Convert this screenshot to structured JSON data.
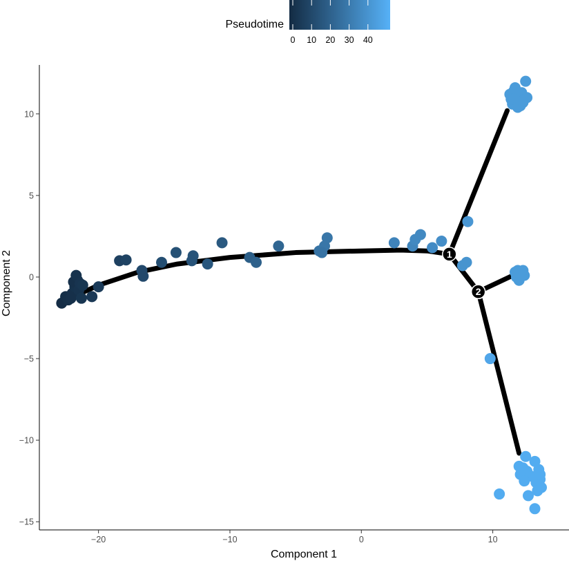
{
  "chart_data": {
    "type": "scatter",
    "xlabel": "Component 1",
    "ylabel": "Component 2",
    "xlim": [
      -24.5,
      15.8
    ],
    "ylim": [
      -15.5,
      13.0
    ],
    "x_ticks": [
      -20,
      -10,
      0,
      10
    ],
    "y_ticks": [
      -15,
      -10,
      -5,
      0,
      5,
      10
    ],
    "x_tick_labels": [
      "−20",
      "−10",
      "0",
      "10"
    ],
    "y_tick_labels": [
      "−15",
      "−10",
      "−5",
      "0",
      "5",
      "10"
    ],
    "grid": false,
    "legend": {
      "title": "Pseudotime",
      "placement": "top",
      "range": [
        0,
        50
      ],
      "ticks": [
        0,
        10,
        20,
        30,
        40
      ],
      "tick_labels": [
        "0",
        "10",
        "20",
        "30",
        "40"
      ],
      "color_low": "#132B43",
      "color_high": "#56B1F7"
    },
    "trajectory": {
      "color": "#000000",
      "main_path": [
        [
          -22.7,
          -1.5
        ],
        [
          -20,
          -0.5
        ],
        [
          -17,
          0.3
        ],
        [
          -14,
          0.8
        ],
        [
          -10,
          1.2
        ],
        [
          -5,
          1.5
        ],
        [
          0,
          1.6
        ],
        [
          3,
          1.65
        ],
        [
          5,
          1.6
        ],
        [
          6.7,
          1.4
        ]
      ],
      "branches": [
        [
          [
            6.7,
            1.4
          ],
          [
            11.1,
            10.2
          ]
        ],
        [
          [
            6.7,
            1.4
          ],
          [
            8.9,
            -0.9
          ]
        ],
        [
          [
            8.9,
            -0.9
          ],
          [
            11.8,
            0.2
          ]
        ],
        [
          [
            8.9,
            -0.9
          ],
          [
            12.0,
            -10.8
          ]
        ]
      ],
      "branch_nodes": [
        {
          "x": 6.7,
          "y": 1.4,
          "label": "1"
        },
        {
          "x": 8.9,
          "y": -0.9,
          "label": "2"
        }
      ]
    },
    "points": [
      {
        "x": -22.8,
        "y": -1.6,
        "t": 0.5
      },
      {
        "x": -22.5,
        "y": -1.2,
        "t": 1
      },
      {
        "x": -22.3,
        "y": -1.4,
        "t": 1.5
      },
      {
        "x": -22.0,
        "y": -1.0,
        "t": 2
      },
      {
        "x": -21.8,
        "y": -0.6,
        "t": 2.5
      },
      {
        "x": -21.6,
        "y": -0.2,
        "t": 3
      },
      {
        "x": -21.9,
        "y": -0.3,
        "t": 2
      },
      {
        "x": -21.5,
        "y": -0.8,
        "t": 3
      },
      {
        "x": -21.7,
        "y": 0.1,
        "t": 3
      },
      {
        "x": -21.4,
        "y": -0.4,
        "t": 3.5
      },
      {
        "x": -22.1,
        "y": -1.3,
        "t": 2
      },
      {
        "x": -21.2,
        "y": -0.5,
        "t": 4
      },
      {
        "x": -21.3,
        "y": -1.3,
        "t": 4
      },
      {
        "x": -20.5,
        "y": -1.2,
        "t": 5
      },
      {
        "x": -20.0,
        "y": -0.6,
        "t": 6
      },
      {
        "x": -18.4,
        "y": 1.0,
        "t": 8
      },
      {
        "x": -17.9,
        "y": 1.05,
        "t": 9
      },
      {
        "x": -16.7,
        "y": 0.4,
        "t": 11
      },
      {
        "x": -16.6,
        "y": 0.05,
        "t": 11
      },
      {
        "x": -15.2,
        "y": 0.9,
        "t": 13
      },
      {
        "x": -14.1,
        "y": 1.5,
        "t": 14
      },
      {
        "x": -12.8,
        "y": 1.3,
        "t": 15
      },
      {
        "x": -12.9,
        "y": 1.0,
        "t": 15
      },
      {
        "x": -11.7,
        "y": 0.8,
        "t": 16
      },
      {
        "x": -10.6,
        "y": 2.1,
        "t": 17
      },
      {
        "x": -8.5,
        "y": 1.2,
        "t": 19
      },
      {
        "x": -8.0,
        "y": 0.9,
        "t": 20
      },
      {
        "x": -6.3,
        "y": 1.9,
        "t": 22
      },
      {
        "x": -3.2,
        "y": 1.6,
        "t": 27
      },
      {
        "x": -2.8,
        "y": 1.9,
        "t": 28
      },
      {
        "x": -2.6,
        "y": 2.4,
        "t": 28
      },
      {
        "x": -3.0,
        "y": 1.5,
        "t": 27
      },
      {
        "x": 2.5,
        "y": 2.1,
        "t": 33
      },
      {
        "x": 3.9,
        "y": 1.9,
        "t": 34
      },
      {
        "x": 4.1,
        "y": 2.3,
        "t": 35
      },
      {
        "x": 4.5,
        "y": 2.6,
        "t": 35
      },
      {
        "x": 5.4,
        "y": 1.8,
        "t": 36
      },
      {
        "x": 6.1,
        "y": 2.2,
        "t": 37
      },
      {
        "x": 8.1,
        "y": 3.4,
        "t": 40
      },
      {
        "x": 7.7,
        "y": 0.7,
        "t": 39
      },
      {
        "x": 8.0,
        "y": 0.9,
        "t": 39
      },
      {
        "x": 11.3,
        "y": 11.2,
        "t": 42
      },
      {
        "x": 11.6,
        "y": 11.4,
        "t": 42
      },
      {
        "x": 12.0,
        "y": 11.1,
        "t": 42
      },
      {
        "x": 11.8,
        "y": 10.8,
        "t": 42
      },
      {
        "x": 12.2,
        "y": 11.3,
        "t": 42
      },
      {
        "x": 11.5,
        "y": 10.6,
        "t": 42
      },
      {
        "x": 12.4,
        "y": 10.9,
        "t": 42
      },
      {
        "x": 11.9,
        "y": 10.4,
        "t": 42
      },
      {
        "x": 12.1,
        "y": 10.5,
        "t": 42
      },
      {
        "x": 11.4,
        "y": 10.9,
        "t": 42
      },
      {
        "x": 12.6,
        "y": 11.0,
        "t": 42
      },
      {
        "x": 12.5,
        "y": 12.0,
        "t": 42
      },
      {
        "x": 11.7,
        "y": 11.6,
        "t": 42
      },
      {
        "x": 12.3,
        "y": 10.7,
        "t": 42
      },
      {
        "x": 11.6,
        "y": 10.9,
        "t": 42
      },
      {
        "x": 11.9,
        "y": 0.4,
        "t": 42
      },
      {
        "x": 12.2,
        "y": 0.2,
        "t": 42
      },
      {
        "x": 11.8,
        "y": 0.0,
        "t": 42
      },
      {
        "x": 12.4,
        "y": 0.1,
        "t": 42
      },
      {
        "x": 12.0,
        "y": -0.2,
        "t": 42
      },
      {
        "x": 11.7,
        "y": 0.3,
        "t": 42
      },
      {
        "x": 12.3,
        "y": 0.4,
        "t": 42
      },
      {
        "x": 9.8,
        "y": -5.0,
        "t": 46
      },
      {
        "x": 10.5,
        "y": -13.3,
        "t": 48
      },
      {
        "x": 12.3,
        "y": -11.7,
        "t": 48
      },
      {
        "x": 12.6,
        "y": -11.9,
        "t": 48
      },
      {
        "x": 12.9,
        "y": -12.2,
        "t": 48
      },
      {
        "x": 12.5,
        "y": -11.0,
        "t": 48
      },
      {
        "x": 13.2,
        "y": -11.3,
        "t": 48
      },
      {
        "x": 13.5,
        "y": -11.8,
        "t": 48
      },
      {
        "x": 13.6,
        "y": -12.4,
        "t": 48
      },
      {
        "x": 13.3,
        "y": -12.6,
        "t": 48
      },
      {
        "x": 13.7,
        "y": -12.9,
        "t": 48
      },
      {
        "x": 13.4,
        "y": -13.1,
        "t": 48
      },
      {
        "x": 12.1,
        "y": -12.1,
        "t": 48
      },
      {
        "x": 12.4,
        "y": -12.5,
        "t": 48
      },
      {
        "x": 12.7,
        "y": -13.4,
        "t": 48
      },
      {
        "x": 13.2,
        "y": -14.2,
        "t": 48
      },
      {
        "x": 12.0,
        "y": -11.6,
        "t": 48
      },
      {
        "x": 13.6,
        "y": -12.1,
        "t": 48
      }
    ]
  }
}
